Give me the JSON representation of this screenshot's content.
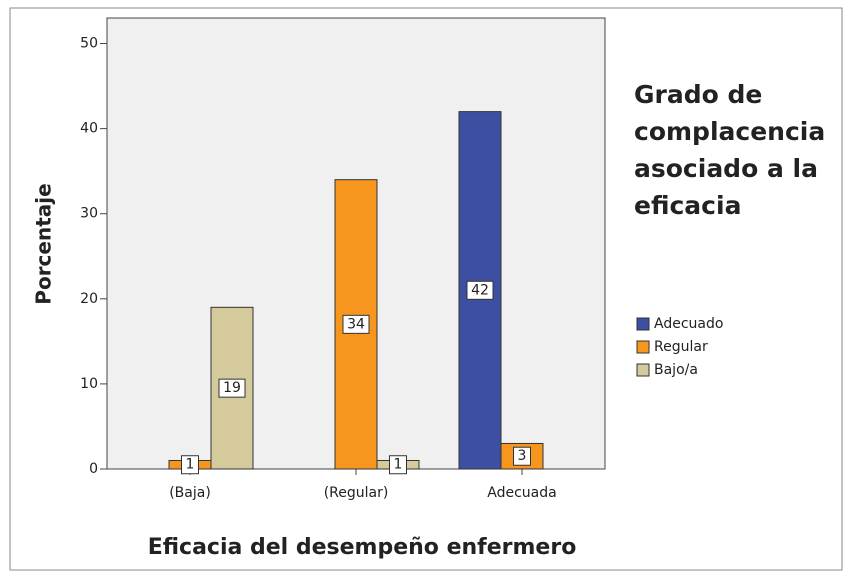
{
  "chart_data": {
    "type": "bar",
    "title": "Grado de complacencia asociado a la eficacia",
    "x_label": "Eficacia del desempeño enfermero",
    "y_label": "Porcentaje",
    "categories": [
      "(Baja)",
      "(Regular)",
      "Adecuada"
    ],
    "series": [
      {
        "name": "Adecuado",
        "color": "#3d4fa3",
        "values": [
          null,
          null,
          42
        ]
      },
      {
        "name": "Regular",
        "color": "#f7961f",
        "values": [
          1,
          34,
          3
        ]
      },
      {
        "name": "Bajo/a",
        "color": "#d4ca9c",
        "values": [
          19,
          1,
          null
        ]
      }
    ],
    "ylim": [
      0,
      53
    ],
    "yticks": [
      0,
      10,
      20,
      30,
      40,
      50
    ],
    "data_labels": true
  }
}
